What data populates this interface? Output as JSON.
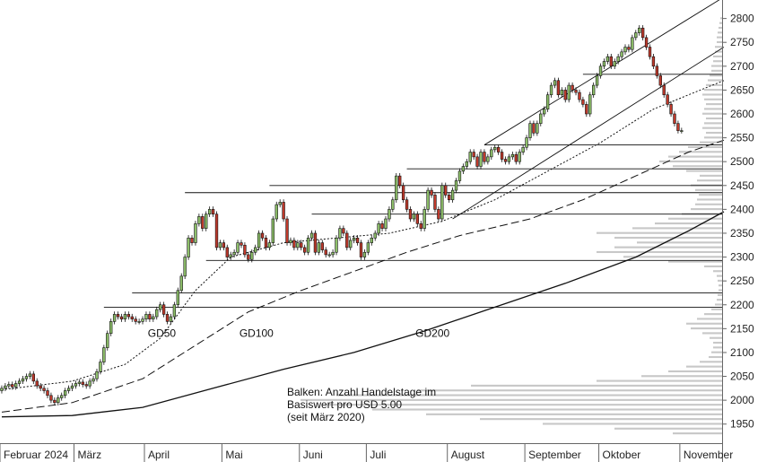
{
  "chart_data": {
    "type": "candlestick",
    "instrument_unit": "USD",
    "y_axis": {
      "min": 1910,
      "max": 2835,
      "ticks": [
        1950,
        2000,
        2050,
        2100,
        2150,
        2200,
        2250,
        2300,
        2350,
        2400,
        2450,
        2500,
        2550,
        2600,
        2650,
        2700,
        2750,
        2800
      ]
    },
    "x_axis": {
      "months": [
        {
          "label": "Februar 2024",
          "start": 0
        },
        {
          "label": "März",
          "start": 21
        },
        {
          "label": "April",
          "start": 41
        },
        {
          "label": "Mai",
          "start": 63
        },
        {
          "label": "Juni",
          "start": 85
        },
        {
          "label": "Juli",
          "start": 104
        },
        {
          "label": "August",
          "start": 127
        },
        {
          "label": "September",
          "start": 149
        },
        {
          "label": "Oktober",
          "start": 170
        },
        {
          "label": "November",
          "start": 193
        }
      ],
      "total_days": 205
    },
    "candles_close": [
      2025,
      2030,
      2033,
      2028,
      2035,
      2040,
      2045,
      2050,
      2055,
      2040,
      2030,
      2025,
      2020,
      2010,
      2000,
      1995,
      2005,
      2010,
      2020,
      2025,
      2030,
      2035,
      2038,
      2033,
      2030,
      2040,
      2045,
      2060,
      2080,
      2110,
      2140,
      2165,
      2180,
      2175,
      2170,
      2180,
      2175,
      2170,
      2165,
      2165,
      2170,
      2180,
      2170,
      2175,
      2190,
      2200,
      2180,
      2165,
      2175,
      2200,
      2230,
      2260,
      2300,
      2340,
      2330,
      2370,
      2385,
      2360,
      2390,
      2400,
      2390,
      2320,
      2330,
      2320,
      2300,
      2305,
      2310,
      2330,
      2325,
      2305,
      2295,
      2310,
      2320,
      2350,
      2340,
      2320,
      2330,
      2380,
      2410,
      2415,
      2380,
      2330,
      2335,
      2320,
      2330,
      2320,
      2310,
      2340,
      2350,
      2310,
      2330,
      2315,
      2305,
      2305,
      2310,
      2340,
      2360,
      2350,
      2320,
      2335,
      2340,
      2330,
      2300,
      2310,
      2330,
      2340,
      2350,
      2370,
      2360,
      2380,
      2400,
      2420,
      2470,
      2450,
      2420,
      2400,
      2380,
      2390,
      2370,
      2360,
      2400,
      2440,
      2430,
      2400,
      2380,
      2450,
      2430,
      2420,
      2440,
      2460,
      2480,
      2490,
      2500,
      2520,
      2510,
      2490,
      2520,
      2500,
      2510,
      2525,
      2530,
      2520,
      2505,
      2500,
      2510,
      2515,
      2500,
      2520,
      2530,
      2550,
      2580,
      2560,
      2580,
      2600,
      2610,
      2640,
      2660,
      2670,
      2640,
      2650,
      2630,
      2660,
      2650,
      2645,
      2630,
      2620,
      2600,
      2640,
      2660,
      2680,
      2700,
      2710,
      2720,
      2700,
      2710,
      2720,
      2730,
      2740,
      2735,
      2760,
      2770,
      2780,
      2760,
      2740,
      2720,
      2700,
      2680,
      2660,
      2640,
      2620,
      2600,
      2580,
      2565,
      2565
    ],
    "moving_averages": [
      {
        "name": "GD50",
        "label_at": {
          "x": 44,
          "y": 2140
        },
        "points": [
          [
            0,
            2022
          ],
          [
            20,
            2040
          ],
          [
            35,
            2075
          ],
          [
            45,
            2130
          ],
          [
            55,
            2230
          ],
          [
            65,
            2300
          ],
          [
            80,
            2330
          ],
          [
            95,
            2340
          ],
          [
            110,
            2350
          ],
          [
            125,
            2375
          ],
          [
            140,
            2420
          ],
          [
            155,
            2480
          ],
          [
            170,
            2540
          ],
          [
            185,
            2610
          ],
          [
            200,
            2655
          ],
          [
            205,
            2670
          ]
        ]
      },
      {
        "name": "GD100",
        "label_at": {
          "x": 70,
          "y": 2140
        },
        "points": [
          [
            0,
            1975
          ],
          [
            20,
            1995
          ],
          [
            40,
            2045
          ],
          [
            55,
            2115
          ],
          [
            70,
            2185
          ],
          [
            85,
            2230
          ],
          [
            100,
            2270
          ],
          [
            115,
            2310
          ],
          [
            130,
            2345
          ],
          [
            150,
            2380
          ],
          [
            165,
            2420
          ],
          [
            180,
            2470
          ],
          [
            195,
            2520
          ],
          [
            205,
            2545
          ]
        ]
      },
      {
        "name": "GD200",
        "label_at": {
          "x": 120,
          "y": 2140
        },
        "points": [
          [
            0,
            1965
          ],
          [
            20,
            1968
          ],
          [
            40,
            1985
          ],
          [
            60,
            2025
          ],
          [
            80,
            2065
          ],
          [
            100,
            2100
          ],
          [
            120,
            2145
          ],
          [
            140,
            2195
          ],
          [
            160,
            2245
          ],
          [
            180,
            2300
          ],
          [
            195,
            2355
          ],
          [
            205,
            2395
          ]
        ]
      }
    ],
    "horizontal_levels": [
      {
        "value": 2683,
        "from": 165
      },
      {
        "value": 2535,
        "from": 137
      },
      {
        "value": 2485,
        "from": 115
      },
      {
        "value": 2450,
        "from": 76
      },
      {
        "value": 2435,
        "from": 52
      },
      {
        "value": 2390,
        "from": 88
      },
      {
        "value": 2293,
        "from": 58
      },
      {
        "value": 2225,
        "from": 37
      },
      {
        "value": 2195,
        "from": 29
      }
    ],
    "trend_channel": {
      "lower": [
        [
          128,
          2380
        ],
        [
          205,
          2740
        ]
      ],
      "upper": [
        [
          137,
          2535
        ],
        [
          205,
          2845
        ]
      ]
    },
    "volume_profile": [
      [
        1930,
        55
      ],
      [
        1940,
        120
      ],
      [
        1950,
        200
      ],
      [
        1960,
        270
      ],
      [
        1970,
        330
      ],
      [
        1980,
        390
      ],
      [
        1990,
        440
      ],
      [
        2000,
        470
      ],
      [
        2010,
        430
      ],
      [
        2020,
        340
      ],
      [
        2030,
        280
      ],
      [
        2040,
        140
      ],
      [
        2050,
        90
      ],
      [
        2060,
        60
      ],
      [
        2070,
        40
      ],
      [
        2080,
        25
      ],
      [
        2090,
        15
      ],
      [
        2100,
        12
      ],
      [
        2110,
        10
      ],
      [
        2120,
        10
      ],
      [
        2130,
        14
      ],
      [
        2140,
        22
      ],
      [
        2150,
        35
      ],
      [
        2160,
        40
      ],
      [
        2170,
        28
      ],
      [
        2180,
        20
      ],
      [
        2190,
        12
      ],
      [
        2200,
        8
      ],
      [
        2210,
        6
      ],
      [
        2220,
        5
      ],
      [
        2230,
        4
      ],
      [
        2240,
        4
      ],
      [
        2250,
        5
      ],
      [
        2260,
        6
      ],
      [
        2270,
        10
      ],
      [
        2280,
        20
      ],
      [
        2290,
        60
      ],
      [
        2300,
        110
      ],
      [
        2310,
        140
      ],
      [
        2320,
        120
      ],
      [
        2330,
        95
      ],
      [
        2340,
        120
      ],
      [
        2350,
        140
      ],
      [
        2360,
        100
      ],
      [
        2370,
        75
      ],
      [
        2380,
        60
      ],
      [
        2390,
        45
      ],
      [
        2400,
        35
      ],
      [
        2410,
        30
      ],
      [
        2420,
        28
      ],
      [
        2430,
        26
      ],
      [
        2440,
        30
      ],
      [
        2450,
        35
      ],
      [
        2460,
        28
      ],
      [
        2470,
        25
      ],
      [
        2480,
        40
      ],
      [
        2490,
        55
      ],
      [
        2500,
        70
      ],
      [
        2510,
        60
      ],
      [
        2520,
        48
      ],
      [
        2530,
        38
      ],
      [
        2540,
        25
      ],
      [
        2550,
        20
      ],
      [
        2560,
        18
      ],
      [
        2570,
        22
      ],
      [
        2580,
        20
      ],
      [
        2590,
        18
      ],
      [
        2600,
        22
      ],
      [
        2610,
        20
      ],
      [
        2620,
        18
      ],
      [
        2630,
        20
      ],
      [
        2640,
        22
      ],
      [
        2650,
        20
      ],
      [
        2660,
        18
      ],
      [
        2670,
        16
      ],
      [
        2680,
        14
      ],
      [
        2690,
        12
      ],
      [
        2700,
        12
      ],
      [
        2710,
        10
      ],
      [
        2720,
        10
      ],
      [
        2730,
        8
      ],
      [
        2740,
        8
      ],
      [
        2750,
        6
      ],
      [
        2760,
        6
      ],
      [
        2770,
        5
      ],
      [
        2780,
        4
      ],
      [
        2790,
        3
      ],
      [
        2800,
        2
      ]
    ],
    "note_lines": [
      "Balken: Anzahl Handelstage im",
      "Basiswert pro USD 5.00",
      "(seit März 2020)"
    ]
  }
}
